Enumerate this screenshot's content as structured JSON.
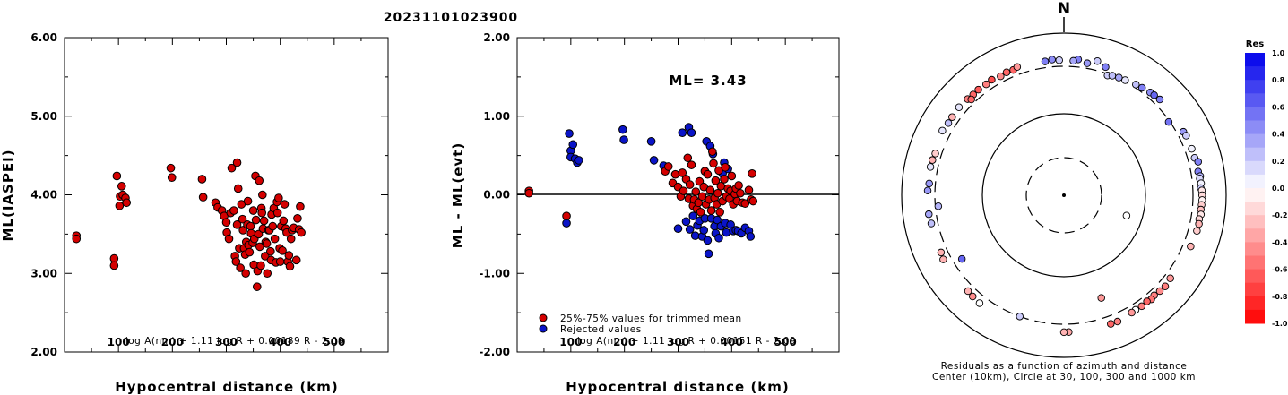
{
  "title": "20231101023900",
  "colors": {
    "accepted": "#d40000",
    "rejected": "#0a14c8",
    "outline": "#000000"
  },
  "chart_data": [
    {
      "type": "scatter",
      "name_id": "ml-vs-distance",
      "xlabel": "Hypocentral distance (km)",
      "ylabel": "ML(IASPEI)",
      "xlim": [
        0,
        600
      ],
      "ylim": [
        2.0,
        6.0
      ],
      "xticks": [
        "100",
        "200",
        "300",
        "400",
        "500"
      ],
      "yticks": [
        "2.00",
        "3.00",
        "4.00",
        "5.00",
        "6.00"
      ],
      "formula": "log A(nm) + 1.11 log R + 0.00189 R - 2.09",
      "points": [
        [
          22,
          3.48
        ],
        [
          22,
          3.44
        ],
        [
          92,
          3.19
        ],
        [
          92,
          3.1
        ],
        [
          97,
          4.24
        ],
        [
          102,
          3.86
        ],
        [
          103,
          3.98
        ],
        [
          106,
          4.11
        ],
        [
          108,
          4.0
        ],
        [
          113,
          3.96
        ],
        [
          115,
          3.9
        ],
        [
          197,
          4.34
        ],
        [
          199,
          4.22
        ],
        [
          255,
          4.2
        ],
        [
          257,
          3.97
        ],
        [
          280,
          3.9
        ],
        [
          284,
          3.84
        ],
        [
          292,
          3.8
        ],
        [
          296,
          3.73
        ],
        [
          300,
          3.65
        ],
        [
          301,
          3.52
        ],
        [
          305,
          3.44
        ],
        [
          308,
          3.77
        ],
        [
          310,
          4.34
        ],
        [
          314,
          3.8
        ],
        [
          316,
          3.22
        ],
        [
          318,
          3.15
        ],
        [
          320,
          3.62
        ],
        [
          320,
          4.41
        ],
        [
          322,
          4.08
        ],
        [
          324,
          3.32
        ],
        [
          326,
          3.07
        ],
        [
          328,
          3.88
        ],
        [
          330,
          3.69
        ],
        [
          331,
          3.55
        ],
        [
          333,
          3.32
        ],
        [
          335,
          3.24
        ],
        [
          336,
          3.0
        ],
        [
          337,
          3.4
        ],
        [
          339,
          3.62
        ],
        [
          340,
          3.92
        ],
        [
          341,
          3.36
        ],
        [
          343,
          3.27
        ],
        [
          345,
          3.6
        ],
        [
          346,
          3.51
        ],
        [
          349,
          3.39
        ],
        [
          350,
          3.8
        ],
        [
          351,
          3.11
        ],
        [
          352,
          3.44
        ],
        [
          354,
          4.24
        ],
        [
          355,
          3.68
        ],
        [
          357,
          2.83
        ],
        [
          358,
          3.03
        ],
        [
          360,
          3.5
        ],
        [
          361,
          4.18
        ],
        [
          362,
          3.34
        ],
        [
          364,
          3.1
        ],
        [
          365,
          3.83
        ],
        [
          366,
          3.77
        ],
        [
          367,
          4.0
        ],
        [
          368,
          3.57
        ],
        [
          370,
          3.67
        ],
        [
          372,
          3.22
        ],
        [
          373,
          3.4
        ],
        [
          375,
          3.38
        ],
        [
          376,
          3.0
        ],
        [
          378,
          3.55
        ],
        [
          380,
          3.55
        ],
        [
          382,
          3.28
        ],
        [
          383,
          3.17
        ],
        [
          384,
          3.75
        ],
        [
          386,
          3.6
        ],
        [
          388,
          3.83
        ],
        [
          390,
          3.44
        ],
        [
          392,
          3.14
        ],
        [
          394,
          3.91
        ],
        [
          395,
          3.77
        ],
        [
          397,
          3.96
        ],
        [
          399,
          3.32
        ],
        [
          400,
          3.15
        ],
        [
          402,
          3.6
        ],
        [
          404,
          3.29
        ],
        [
          406,
          3.67
        ],
        [
          408,
          3.88
        ],
        [
          410,
          3.57
        ],
        [
          412,
          3.52
        ],
        [
          414,
          3.15
        ],
        [
          416,
          3.23
        ],
        [
          418,
          3.09
        ],
        [
          420,
          3.44
        ],
        [
          422,
          3.55
        ],
        [
          425,
          3.58
        ],
        [
          430,
          3.17
        ],
        [
          432,
          3.7
        ],
        [
          435,
          3.56
        ],
        [
          437,
          3.85
        ],
        [
          439,
          3.52
        ]
      ]
    },
    {
      "type": "scatter",
      "name_id": "residual-vs-distance",
      "xlabel": "Hypocentral distance (km)",
      "ylabel": "ML - ML(evt)",
      "xlim": [
        0,
        600
      ],
      "ylim": [
        -2.0,
        2.0
      ],
      "xticks": [
        "100",
        "200",
        "300",
        "400",
        "500"
      ],
      "yticks": [
        "-2.00",
        "-1.00",
        "0.00",
        "1.00",
        "2.00"
      ],
      "annotation": "ML= 3.43",
      "legend": [
        "25%-75% values for trimmed mean",
        "Rejected values"
      ],
      "formula": "log A(nm) + 1.11 log R + 0.00151 R - 2.09",
      "accepted": [
        [
          22,
          0.05
        ],
        [
          22,
          0.02
        ],
        [
          92,
          -0.27
        ],
        [
          276,
          0.3
        ],
        [
          282,
          0.36
        ],
        [
          290,
          0.15
        ],
        [
          295,
          0.26
        ],
        [
          300,
          0.1
        ],
        [
          305,
          -0.02
        ],
        [
          308,
          0.28
        ],
        [
          310,
          0.05
        ],
        [
          315,
          0.2
        ],
        [
          318,
          0.47
        ],
        [
          320,
          -0.05
        ],
        [
          322,
          0.13
        ],
        [
          325,
          0.38
        ],
        [
          328,
          -0.14
        ],
        [
          330,
          -0.06
        ],
        [
          333,
          0.04
        ],
        [
          335,
          -0.18
        ],
        [
          338,
          -0.1
        ],
        [
          340,
          0.17
        ],
        [
          342,
          -0.22
        ],
        [
          345,
          -0.02
        ],
        [
          348,
          0.1
        ],
        [
          350,
          0.3
        ],
        [
          352,
          -0.12
        ],
        [
          355,
          0.26
        ],
        [
          358,
          -0.06
        ],
        [
          360,
          0.06
        ],
        [
          362,
          -0.2
        ],
        [
          364,
          0.55
        ],
        [
          366,
          0.4
        ],
        [
          368,
          -0.04
        ],
        [
          370,
          0.18
        ],
        [
          372,
          -0.12
        ],
        [
          374,
          0.02
        ],
        [
          376,
          0.31
        ],
        [
          378,
          -0.22
        ],
        [
          380,
          0.11
        ],
        [
          383,
          -0.08
        ],
        [
          386,
          0.2
        ],
        [
          388,
          0.35
        ],
        [
          390,
          -0.02
        ],
        [
          393,
          0.08
        ],
        [
          396,
          -0.05
        ],
        [
          398,
          0.05
        ],
        [
          400,
          0.24
        ],
        [
          403,
          -0.12
        ],
        [
          406,
          0.01
        ],
        [
          408,
          0.08
        ],
        [
          410,
          -0.08
        ],
        [
          413,
          0.12
        ],
        [
          416,
          0.02
        ],
        [
          420,
          -0.1
        ],
        [
          425,
          -0.11
        ],
        [
          432,
          0.06
        ],
        [
          436,
          -0.06
        ],
        [
          438,
          0.27
        ],
        [
          440,
          -0.08
        ]
      ],
      "rejected": [
        [
          92,
          -0.36
        ],
        [
          97,
          0.78
        ],
        [
          100,
          0.56
        ],
        [
          100,
          0.48
        ],
        [
          104,
          0.64
        ],
        [
          108,
          0.46
        ],
        [
          112,
          0.41
        ],
        [
          115,
          0.44
        ],
        [
          197,
          0.83
        ],
        [
          199,
          0.7
        ],
        [
          250,
          0.68
        ],
        [
          255,
          0.44
        ],
        [
          273,
          0.37
        ],
        [
          300,
          -0.43
        ],
        [
          308,
          0.79
        ],
        [
          315,
          -0.34
        ],
        [
          320,
          0.86
        ],
        [
          322,
          -0.44
        ],
        [
          325,
          0.79
        ],
        [
          328,
          -0.27
        ],
        [
          332,
          -0.52
        ],
        [
          336,
          -0.39
        ],
        [
          340,
          -0.33
        ],
        [
          345,
          -0.53
        ],
        [
          348,
          -0.45
        ],
        [
          350,
          -0.3
        ],
        [
          353,
          0.68
        ],
        [
          355,
          -0.58
        ],
        [
          357,
          -0.75
        ],
        [
          360,
          0.62
        ],
        [
          362,
          -0.3
        ],
        [
          365,
          0.52
        ],
        [
          368,
          -0.4
        ],
        [
          370,
          -0.49
        ],
        [
          373,
          -0.32
        ],
        [
          376,
          -0.55
        ],
        [
          380,
          -0.4
        ],
        [
          383,
          0.27
        ],
        [
          386,
          0.41
        ],
        [
          388,
          -0.36
        ],
        [
          390,
          -0.48
        ],
        [
          393,
          0.33
        ],
        [
          398,
          -0.38
        ],
        [
          403,
          -0.46
        ],
        [
          408,
          -0.45
        ],
        [
          412,
          -0.46
        ],
        [
          418,
          -0.49
        ],
        [
          425,
          -0.42
        ],
        [
          432,
          -0.46
        ],
        [
          435,
          -0.53
        ]
      ]
    },
    {
      "type": "scatter",
      "name_id": "azimuth-residuals",
      "north_label": "N",
      "caption_line1": "Residuals as a function of azimuth and distance",
      "caption_line2": "Center (10km), Circle at 30, 100, 300 and 1000 km",
      "colorbar_title": "Res",
      "colorbar_ticks": [
        "1.0",
        "0.8",
        "0.6",
        "0.4",
        "0.2",
        "0.0",
        "-0.2",
        "-0.4",
        "-0.6",
        "-0.8",
        "-1.0"
      ],
      "points_az_dist_res": [
        [
          20,
          290,
          0.2
        ],
        [
          22,
          300,
          0.25
        ],
        [
          25,
          310,
          0.35
        ],
        [
          28,
          315,
          0.1
        ],
        [
          33,
          335,
          0.25
        ],
        [
          36,
          345,
          0.5
        ],
        [
          40,
          362,
          0.45
        ],
        [
          42,
          370,
          0.6
        ],
        [
          45,
          380,
          0.5
        ],
        [
          18,
          370,
          0.5
        ],
        [
          14,
          420,
          0.2
        ],
        [
          6,
          395,
          0.5
        ],
        [
          55,
          292,
          0.55
        ],
        [
          62,
          375,
          0.4
        ],
        [
          64,
          385,
          0.2
        ],
        [
          70,
          385,
          0.05
        ],
        [
          74,
          385,
          0.2
        ],
        [
          76,
          420,
          0.5
        ],
        [
          80,
          390,
          0.5
        ],
        [
          82,
          410,
          0.3
        ],
        [
          83,
          398,
          0.15
        ],
        [
          85,
          410,
          0.05
        ],
        [
          87,
          400,
          0.2
        ],
        [
          88,
          415,
          -0.1
        ],
        [
          90,
          418,
          -0.15
        ],
        [
          92,
          420,
          -0.05
        ],
        [
          94,
          415,
          -0.2
        ],
        [
          96,
          410,
          -0.25
        ],
        [
          98,
          420,
          -0.1
        ],
        [
          100,
          405,
          -0.15
        ],
        [
          102,
          415,
          -0.3
        ],
        [
          105,
          410,
          -0.2
        ],
        [
          112,
          395,
          -0.3
        ],
        [
          128,
          372,
          -0.4
        ],
        [
          132,
          390,
          -0.5
        ],
        [
          135,
          380,
          -0.45
        ],
        [
          138,
          370,
          -0.5
        ],
        [
          140,
          385,
          -0.55
        ],
        [
          142,
          370,
          -0.6
        ],
        [
          145,
          380,
          -0.5
        ],
        [
          148,
          375,
          0.0
        ],
        [
          150,
          380,
          -0.4
        ],
        [
          157,
          405,
          -0.5
        ],
        [
          160,
          400,
          -0.6
        ],
        [
          178,
          400,
          -0.35
        ],
        [
          180,
          400,
          -0.3
        ],
        [
          160,
          190,
          -0.4
        ],
        [
          238,
          245,
          0.6
        ],
        [
          200,
          300,
          0.2
        ],
        [
          265,
          280,
          0.3
        ],
        [
          108,
          65,
          0.0
        ],
        [
          298,
          410,
          0.1
        ],
        [
          302,
          390,
          0.25
        ],
        [
          305,
          392,
          -0.3
        ],
        [
          315,
          388,
          -0.5
        ],
        [
          318,
          380,
          -0.6
        ],
        [
          321,
          385,
          -0.65
        ],
        [
          325,
          380,
          -0.5
        ],
        [
          328,
          390,
          -0.7
        ],
        [
          332,
          370,
          -0.45
        ],
        [
          335,
          382,
          -0.6
        ],
        [
          338,
          375,
          -0.6
        ],
        [
          340,
          395,
          -0.4
        ],
        [
          310,
          400,
          0.1
        ],
        [
          288,
          375,
          -0.2
        ],
        [
          285,
          388,
          -0.3
        ],
        [
          275,
          375,
          0.4
        ],
        [
          272,
          390,
          0.4
        ],
        [
          262,
          392,
          0.35
        ],
        [
          258,
          380,
          0.25
        ],
        [
          242,
          395,
          -0.3
        ],
        [
          245,
          380,
          -0.3
        ],
        [
          222,
          390,
          -0.45
        ],
        [
          225,
          380,
          -0.3
        ],
        [
          218,
          400,
          0.0
        ],
        [
          355,
          390,
          0.45
        ],
        [
          352,
          375,
          0.5
        ],
        [
          358,
          375,
          0.2
        ],
        [
          10,
          360,
          0.4
        ],
        [
          4,
          370,
          0.35
        ],
        [
          316,
          350,
          -0.6
        ],
        [
          282,
          392,
          0.1
        ]
      ]
    }
  ]
}
